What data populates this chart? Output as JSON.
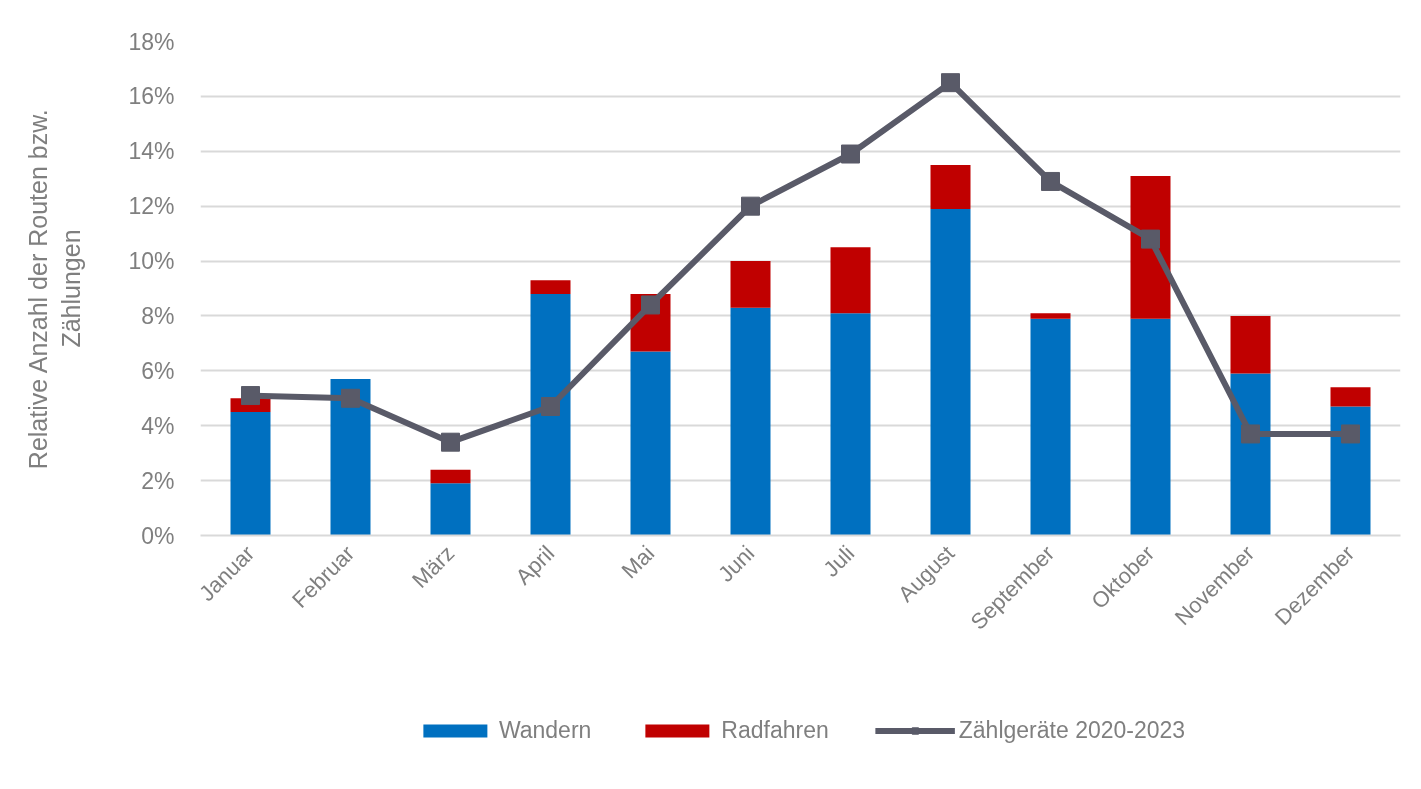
{
  "chart_data": {
    "type": "bar",
    "stacked": true,
    "ylabel": "Relative Anzahl der Routen bzw. Zählungen",
    "categories": [
      "Januar",
      "Februar",
      "März",
      "April",
      "Mai",
      "Juni",
      "Juli",
      "August",
      "September",
      "Oktober",
      "November",
      "Dezember"
    ],
    "ylim": [
      0,
      18
    ],
    "yticks": [
      {
        "value": 0,
        "label": "0%"
      },
      {
        "value": 2,
        "label": "2%"
      },
      {
        "value": 4,
        "label": "4%"
      },
      {
        "value": 6,
        "label": "6%"
      },
      {
        "value": 8,
        "label": "8%"
      },
      {
        "value": 10,
        "label": "10%"
      },
      {
        "value": 12,
        "label": "12%"
      },
      {
        "value": 14,
        "label": "14%"
      },
      {
        "value": 16,
        "label": "16%"
      },
      {
        "value": 18,
        "label": "18%"
      }
    ],
    "grid": "y",
    "legend": "bottom",
    "series": [
      {
        "name": "Wandern",
        "color": "#0070c0",
        "values": [
          4.5,
          5.7,
          1.9,
          8.8,
          6.7,
          8.3,
          8.1,
          11.9,
          7.9,
          7.9,
          5.9,
          4.7
        ]
      },
      {
        "name": "Radfahren",
        "color": "#c00000",
        "values": [
          0.5,
          0.0,
          0.5,
          0.5,
          2.1,
          1.7,
          2.4,
          1.6,
          0.2,
          5.2,
          2.1,
          0.7
        ]
      },
      {
        "name": "Zählgeräte 2020-2023",
        "type": "line",
        "color": "#595a68",
        "marker": "square",
        "line_style": "solid",
        "values": [
          5.1,
          5.0,
          3.4,
          4.7,
          8.4,
          12.0,
          13.9,
          16.5,
          12.9,
          10.8,
          3.7,
          3.7
        ]
      }
    ]
  }
}
